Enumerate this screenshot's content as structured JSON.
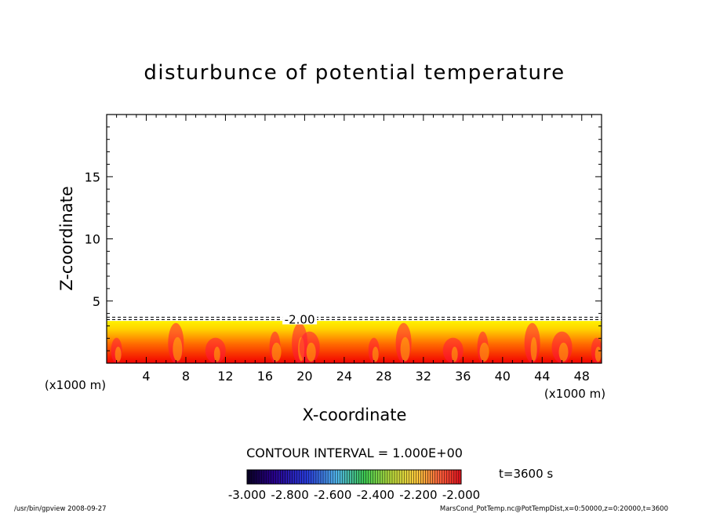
{
  "chart_data": {
    "type": "heatmap",
    "title": "disturbunce of potential temperature",
    "xlabel": "X-coordinate",
    "ylabel": "Z-coordinate",
    "x_unit_label": "(x1000 m)",
    "y_unit_label": "(x1000 m)",
    "xlim": [
      0,
      50
    ],
    "ylim": [
      0,
      20
    ],
    "x_ticks": [
      "4",
      "8",
      "12",
      "16",
      "20",
      "24",
      "28",
      "32",
      "36",
      "40",
      "44",
      "48"
    ],
    "y_ticks": [
      "5",
      "10",
      "15"
    ],
    "field_top_z": 3.4,
    "contour_lines_z": [
      3.5,
      3.7
    ],
    "contour_label": "-2.00",
    "contour_label_x": 19.5,
    "contour_interval_text": "CONTOUR INTERVAL = 1.000E+00",
    "colorbar": {
      "tick_labels": [
        "-3.000",
        "-2.800",
        "-2.600",
        "-2.400",
        "-2.200",
        "-2.000"
      ],
      "range": [
        -3.0,
        -2.0
      ]
    },
    "time_label": "t=3600 s",
    "plumes_x": [
      1,
      7,
      11,
      17,
      19.5,
      20.5,
      27,
      30,
      35,
      38,
      43,
      46,
      49.5
    ],
    "colors": {
      "field_dark": "#f20000",
      "field_mid": "#ff6a00",
      "field_light": "#ffd200",
      "field_top": "#fff200",
      "plume": "#ff1a3a",
      "contour": "#000000"
    }
  },
  "footer": {
    "left": "/usr/bin/gpview   2008-09-27",
    "right": "MarsCond_PotTemp.nc@PotTempDist,x=0:50000,z=0:20000,t=3600"
  }
}
